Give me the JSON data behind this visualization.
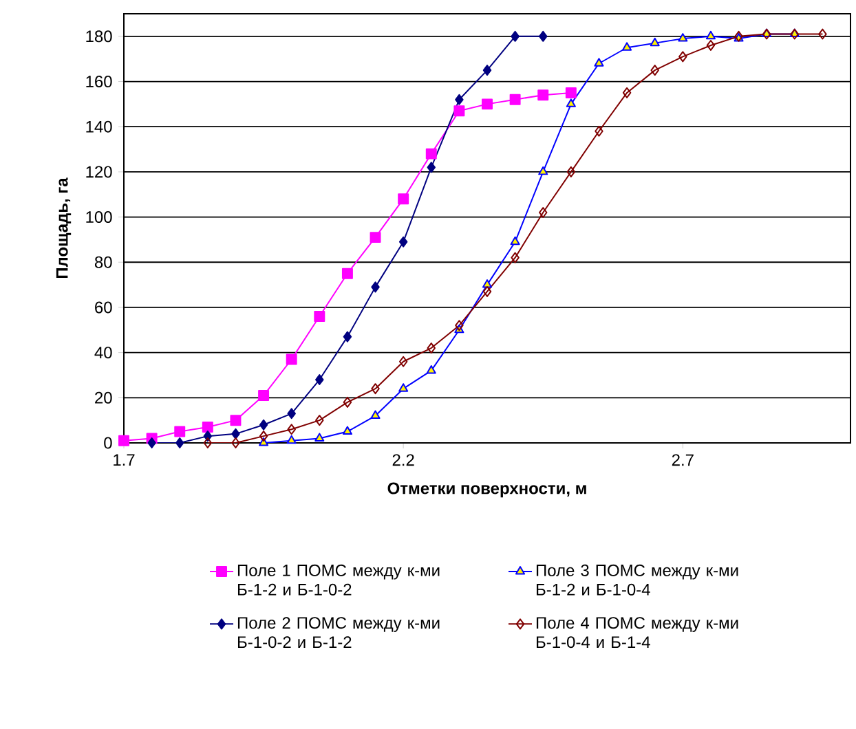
{
  "chart_data": {
    "type": "line",
    "xlabel": "Отметки поверхности, м",
    "ylabel": "Площадь, га",
    "xlim": [
      1.7,
      3.0
    ],
    "xticks": [
      1.7,
      2.2,
      2.7
    ],
    "ylim": [
      0,
      190
    ],
    "yticks": [
      0,
      20,
      40,
      60,
      80,
      100,
      120,
      140,
      160,
      180
    ],
    "grid": "y",
    "legend": "bottom",
    "line_style": "solid",
    "series": [
      {
        "name": "Поле 1 ПОМС между к-ми Б-1-2 и Б-1-0-2",
        "color": "#ff00ff",
        "marker": "square",
        "x": [
          1.7,
          1.75,
          1.8,
          1.85,
          1.9,
          1.95,
          2.0,
          2.05,
          2.1,
          2.15,
          2.2,
          2.25,
          2.3,
          2.35,
          2.4,
          2.45,
          2.5
        ],
        "values": [
          1,
          2,
          5,
          7,
          10,
          21,
          37,
          56,
          75,
          91,
          108,
          128,
          147,
          150,
          152,
          154,
          155
        ]
      },
      {
        "name": "Поле 2 ПОМС между к-ми Б-1-0-2 и Б-1-2",
        "color": "#000080",
        "marker": "diamond",
        "x": [
          1.75,
          1.8,
          1.85,
          1.9,
          1.95,
          2.0,
          2.05,
          2.1,
          2.15,
          2.2,
          2.25,
          2.3,
          2.35,
          2.4,
          2.45
        ],
        "values": [
          0,
          0,
          3,
          4,
          8,
          13,
          28,
          47,
          69,
          89,
          122,
          152,
          165,
          180,
          180
        ]
      },
      {
        "name": "Поле 3 ПОМС между к-ми Б-1-2 и Б-1-0-4",
        "color": "#0000ff",
        "marker": "triangle",
        "x": [
          1.95,
          2.0,
          2.05,
          2.1,
          2.15,
          2.2,
          2.25,
          2.3,
          2.35,
          2.4,
          2.45,
          2.5,
          2.55,
          2.6,
          2.65,
          2.7,
          2.75,
          2.8,
          2.85,
          2.9
        ],
        "values": [
          0,
          1,
          2,
          5,
          12,
          24,
          32,
          50,
          70,
          89,
          120,
          150,
          168,
          175,
          177,
          179,
          180,
          179,
          181,
          181
        ]
      },
      {
        "name": "Поле 4 ПОМС между к-ми Б-1-0-4 и Б-1-4",
        "color": "#800000",
        "marker": "diamond",
        "x": [
          1.85,
          1.9,
          1.95,
          2.0,
          2.05,
          2.1,
          2.15,
          2.2,
          2.25,
          2.3,
          2.35,
          2.4,
          2.45,
          2.5,
          2.55,
          2.6,
          2.65,
          2.7,
          2.75,
          2.8,
          2.85,
          2.9,
          2.95
        ],
        "values": [
          0,
          0,
          3,
          6,
          10,
          18,
          24,
          36,
          42,
          52,
          67,
          82,
          102,
          120,
          138,
          155,
          165,
          171,
          176,
          180,
          181,
          181,
          181
        ]
      }
    ]
  }
}
